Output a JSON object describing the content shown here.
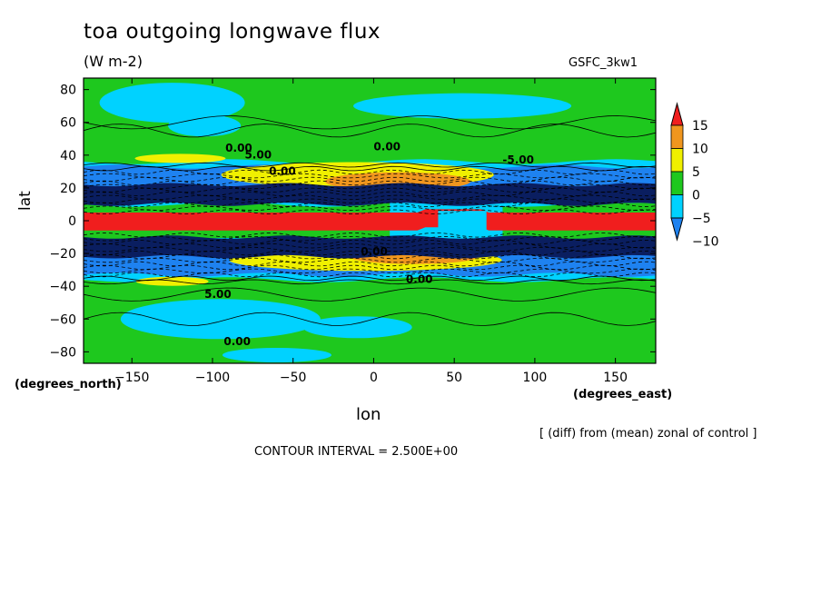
{
  "header": {
    "title": "toa outgoing longwave flux",
    "units": "(W m-2)",
    "dataset": "GSFC_3kw1"
  },
  "footer": {
    "note": "[ (diff) from (mean) zonal of control ]",
    "contour_interval": "CONTOUR INTERVAL = 2.500E+00"
  },
  "chart_data": {
    "type": "heatmap",
    "title": "toa outgoing longwave flux",
    "subtitle": "(W m-2)",
    "xlabel": "lon",
    "xlabel_unit": "(degrees_east)",
    "ylabel": "lat",
    "ylabel_unit": "(degrees_north)",
    "xlim": [
      -180,
      175
    ],
    "ylim": [
      -87,
      87
    ],
    "x_ticks": [
      -150,
      -100,
      -50,
      0,
      50,
      100,
      150
    ],
    "y_ticks": [
      80,
      60,
      40,
      20,
      0,
      -20,
      -40,
      -60,
      -80
    ],
    "x_tick_labels": [
      "−150",
      "−100",
      "−50",
      "0",
      "50",
      "100",
      "150"
    ],
    "y_tick_labels": [
      "80",
      "60",
      "40",
      "20",
      "0",
      "−20",
      "−40",
      "−60",
      "−80"
    ],
    "colorbar": {
      "labels": [
        "15",
        "10",
        "5",
        "0",
        "−5",
        "−10"
      ],
      "colors": [
        "#f01e1e",
        "#f0961e",
        "#f0f000",
        "#1ec81e",
        "#00d2ff",
        "#1e82f0"
      ]
    },
    "contour_labels": [
      "0.00",
      "5.00",
      "0.00",
      "0.00",
      "-5.00",
      "0.00",
      "5.00",
      "0.00",
      "0.00"
    ],
    "colors": {
      "strong_positive": "#f01e1e",
      "positive_high": "#f0961e",
      "positive_low": "#f0f000",
      "near_zero": "#1ec81e",
      "negative_low": "#00d2ff",
      "negative_high": "#1e82f0",
      "contour_line": "#000000"
    }
  }
}
